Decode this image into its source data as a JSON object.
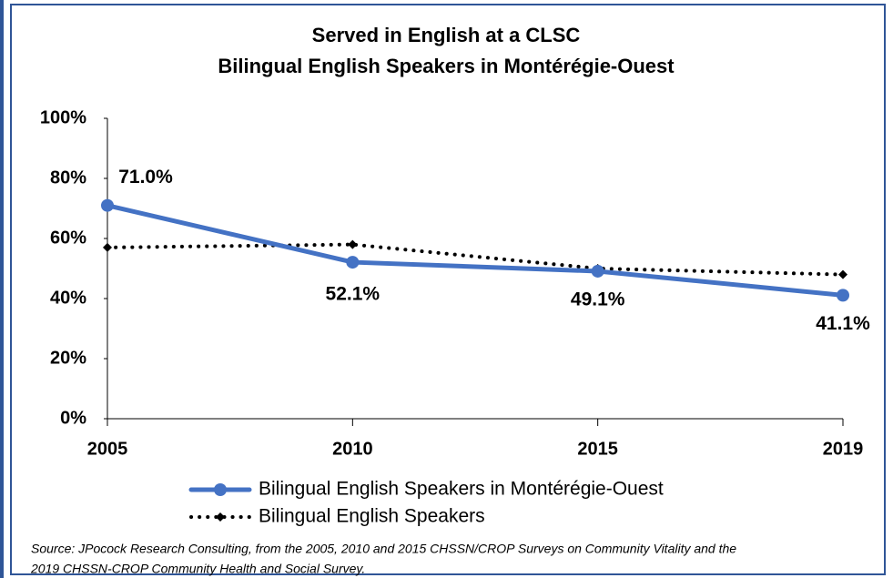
{
  "chart_data": {
    "type": "line",
    "title": "Served in English at a CLSC",
    "subtitle": "Bilingual English Speakers in Montérégie-Ouest",
    "categories": [
      "2005",
      "2010",
      "2015",
      "2019"
    ],
    "series": [
      {
        "name": "Bilingual English Speakers in Montérégie-Ouest",
        "color": "#4472c4",
        "style": "solid",
        "marker": "circle",
        "values": [
          71.0,
          52.1,
          49.1,
          41.1
        ],
        "value_labels": [
          "71.0%",
          "52.1%",
          "49.1%",
          "41.1%"
        ]
      },
      {
        "name": "Bilingual English Speakers",
        "color": "#000000",
        "style": "dotted",
        "marker": "diamond",
        "values": [
          57,
          58,
          50,
          48
        ]
      }
    ],
    "ylim": [
      0,
      100
    ],
    "yticks": [
      {
        "value": 0,
        "label": "0%"
      },
      {
        "value": 20,
        "label": "20%"
      },
      {
        "value": 40,
        "label": "40%"
      },
      {
        "value": 60,
        "label": "60%"
      },
      {
        "value": 80,
        "label": "80%"
      },
      {
        "value": 100,
        "label": "100%"
      }
    ],
    "grid": false,
    "legend": "bottom",
    "source": [
      "Source: JPocock Research Consulting, from the 2005, 2010  and 2015  CHSSN/CROP Surveys on Community Vitality and the",
      "2019  CHSSN-CROP Community Health and Social Survey."
    ]
  }
}
